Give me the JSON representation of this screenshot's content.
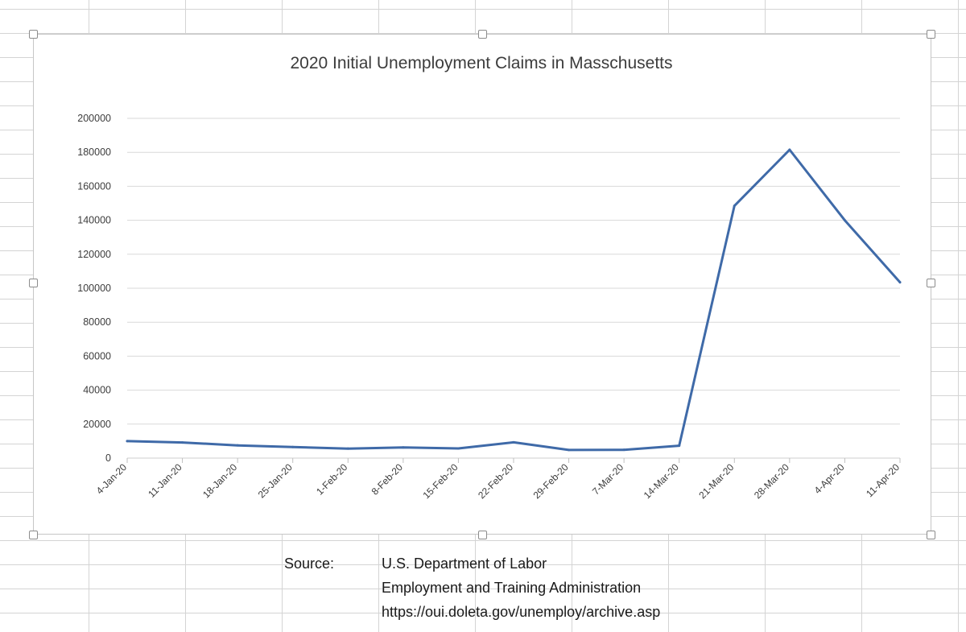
{
  "colors": {
    "line": "#3f6aa8",
    "gridline": "#d9d9d9",
    "sheet_grid": "#d4d4d4",
    "text": "#3c3c3c"
  },
  "chart_data": {
    "type": "line",
    "title": "2020 Initial Unemployment Claims in Masschusetts",
    "xlabel": "",
    "ylabel": "",
    "x": [
      "4-Jan-20",
      "11-Jan-20",
      "18-Jan-20",
      "25-Jan-20",
      "1-Feb-20",
      "8-Feb-20",
      "15-Feb-20",
      "22-Feb-20",
      "29-Feb-20",
      "7-Mar-20",
      "14-Mar-20",
      "21-Mar-20",
      "28-Mar-20",
      "4-Apr-20",
      "11-Apr-20"
    ],
    "series": [
      {
        "name": "",
        "values": [
          10000,
          9200,
          7500,
          6500,
          5600,
          6300,
          5700,
          9300,
          4800,
          4900,
          7300,
          148500,
          181500,
          140000,
          103500
        ]
      }
    ],
    "ylim": [
      0,
      200000
    ],
    "yticks": [
      "0",
      "20000",
      "40000",
      "60000",
      "80000",
      "100000",
      "120000",
      "140000",
      "160000",
      "180000",
      "200000"
    ],
    "grid": true,
    "legend": "none"
  },
  "source": {
    "label": "Source:",
    "line1": "U.S. Department of Labor",
    "line2": "Employment and Training Administration",
    "line3": "https://oui.doleta.gov/unemploy/archive.asp"
  }
}
